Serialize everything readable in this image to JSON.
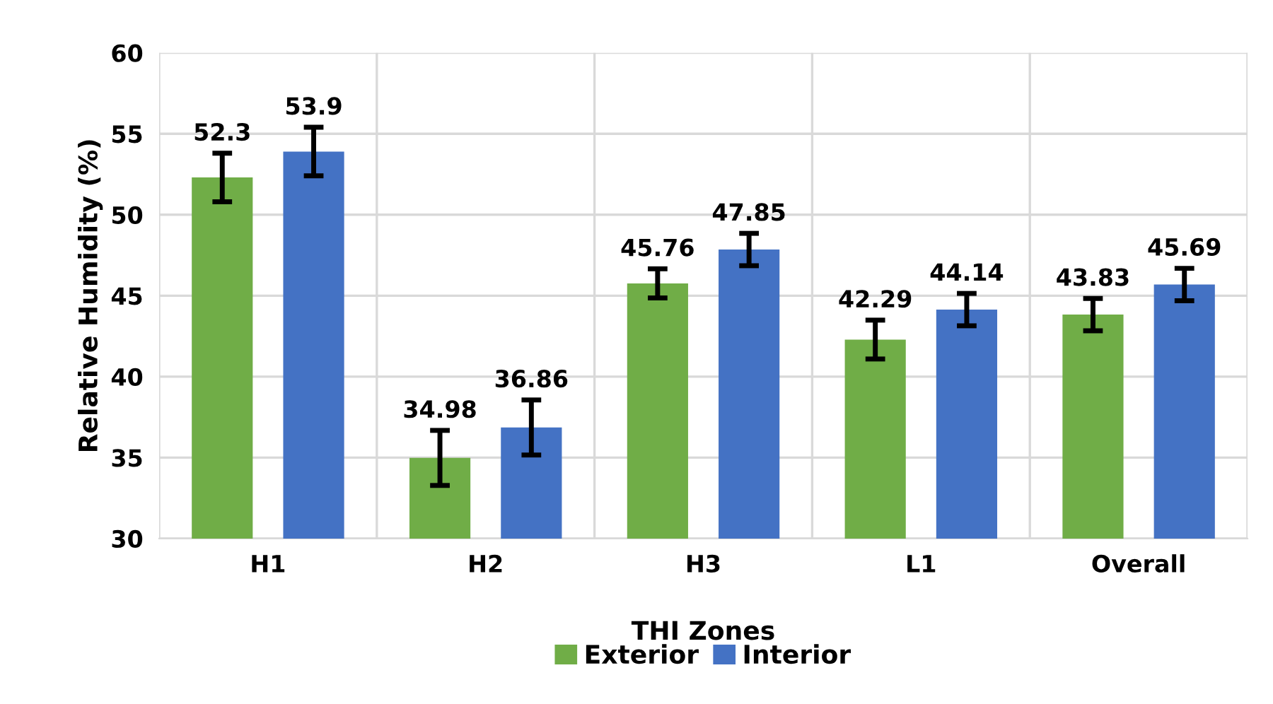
{
  "chart_data": {
    "type": "bar",
    "xlabel": "THI Zones",
    "ylabel": "Relative Humidity (%)",
    "categories": [
      "H1",
      "H2",
      "H3",
      "L1",
      "Overall"
    ],
    "series": [
      {
        "name": "Exterior",
        "color": "#70ad47",
        "values": [
          52.3,
          34.98,
          45.76,
          42.29,
          43.83
        ],
        "errors": [
          1.5,
          1.7,
          0.9,
          1.2,
          1.0
        ]
      },
      {
        "name": "Interior",
        "color": "#4472c4",
        "values": [
          53.9,
          36.86,
          47.85,
          44.14,
          45.69
        ],
        "errors": [
          1.5,
          1.7,
          1.0,
          1.0,
          1.0
        ]
      }
    ],
    "ylim": [
      30,
      60
    ],
    "yticks": [
      30,
      35,
      40,
      45,
      50,
      55,
      60
    ],
    "grid": true,
    "legend": "bottom",
    "data_labels": true
  }
}
